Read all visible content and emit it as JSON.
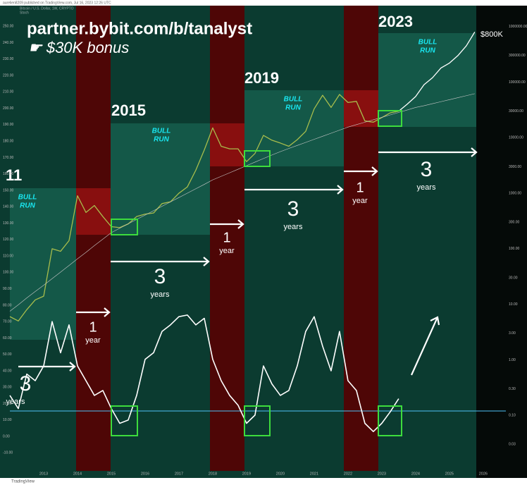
{
  "chart_data": {
    "type": "line",
    "title": "Bitcoin / U.S. Dollar, 1W, CRYPTO",
    "publisher": "aurelien8209 published on TradingView.com, Jul 16, 2023 12:26 UTC",
    "indicator": "Stoch",
    "footer": "TradingView",
    "x": [
      2012,
      2012.25,
      2012.5,
      2012.75,
      2013,
      2013.25,
      2013.5,
      2013.75,
      2014,
      2014.25,
      2014.5,
      2014.75,
      2015,
      2015.25,
      2015.5,
      2015.75,
      2016,
      2016.25,
      2016.5,
      2016.75,
      2017,
      2017.25,
      2017.5,
      2017.75,
      2018,
      2018.25,
      2018.5,
      2018.75,
      2019,
      2019.25,
      2019.5,
      2019.75,
      2020,
      2020.25,
      2020.5,
      2020.75,
      2021,
      2021.25,
      2021.5,
      2021.75,
      2022,
      2022.25,
      2022.5,
      2022.75,
      2023,
      2023.25,
      2023.5,
      2023.75,
      2024,
      2024.25,
      2024.5,
      2024.75,
      2025,
      2025.25,
      2025.5,
      2025.75
    ],
    "series": [
      {
        "color": "#a8bd4c",
        "axis": "y2",
        "values": [
          6,
          5,
          8,
          12,
          14,
          100,
          90,
          140,
          900,
          450,
          600,
          380,
          250,
          240,
          280,
          380,
          420,
          440,
          650,
          700,
          1000,
          1300,
          2600,
          6000,
          15000,
          7000,
          6300,
          6300,
          3700,
          5200,
          11000,
          9000,
          8000,
          7000,
          9200,
          13000,
          33000,
          58000,
          35000,
          60000,
          43000,
          45000,
          20000,
          19000,
          23000,
          28000,
          30000,
          null,
          null,
          null,
          null,
          null,
          null,
          null,
          null,
          null
        ]
      },
      {
        "color": "#ffffff",
        "axis": "y2",
        "values": [
          null,
          null,
          null,
          null,
          null,
          null,
          null,
          null,
          null,
          null,
          null,
          null,
          null,
          null,
          null,
          null,
          null,
          null,
          null,
          null,
          null,
          null,
          null,
          null,
          null,
          null,
          null,
          null,
          null,
          null,
          null,
          null,
          null,
          null,
          null,
          null,
          null,
          null,
          null,
          null,
          null,
          null,
          null,
          null,
          null,
          null,
          30000,
          40000,
          55000,
          90000,
          120000,
          180000,
          220000,
          300000,
          450000,
          800000
        ]
      },
      {
        "color": "#c8c8c8",
        "axis": "y2",
        "values": [
          7.5,
          9.8,
          13,
          17,
          22,
          29,
          38,
          50,
          66,
          86,
          114,
          149,
          195,
          234,
          281,
          337,
          404,
          484,
          581,
          697,
          836,
          1002,
          1202,
          1442,
          1740,
          2014,
          2333,
          2704,
          3133,
          3631,
          4207,
          4875,
          5600,
          6383,
          7244,
          8222,
          9333,
          10593,
          12023,
          13646,
          15500,
          17140,
          18967,
          20989,
          23227,
          25704,
          28445,
          31477,
          35000,
          37670,
          40926,
          44463,
          48306,
          52481,
          57016,
          61944
        ]
      },
      {
        "color": "#ffffff",
        "axis": "y",
        "values": [
          25,
          17,
          38,
          34,
          43,
          70,
          51,
          68,
          43,
          34,
          25,
          28,
          17,
          8,
          10,
          25,
          47,
          51,
          64,
          68,
          73,
          74,
          68,
          72,
          47,
          34,
          25,
          19,
          8,
          13,
          43,
          32,
          25,
          28,
          43,
          64,
          73,
          55,
          40,
          64,
          34,
          28,
          8,
          3,
          8,
          15,
          23,
          null,
          null,
          null,
          null,
          null,
          null,
          null,
          null,
          null
        ]
      }
    ],
    "xlim": [
      2012,
      2026.67
    ],
    "xticks": [
      2013,
      2014,
      2015,
      2016,
      2017,
      2018,
      2019,
      2020,
      2021,
      2022,
      2023,
      2024,
      2025,
      2026
    ],
    "ylim": [
      -21,
      260
    ],
    "yticks": [
      {
        "value": 250,
        "label": "250.00"
      },
      {
        "value": 240,
        "label": "240.00"
      },
      {
        "value": 230,
        "label": "230.00"
      },
      {
        "value": 220,
        "label": "220.00"
      },
      {
        "value": 210,
        "label": "210.00"
      },
      {
        "value": 200,
        "label": "200.00"
      },
      {
        "value": 190,
        "label": "190.00"
      },
      {
        "value": 180,
        "label": "180.00"
      },
      {
        "value": 170,
        "label": "170.00"
      },
      {
        "value": 160,
        "label": "160.00"
      },
      {
        "value": 150,
        "label": "150.00"
      },
      {
        "value": 140,
        "label": "140.00"
      },
      {
        "value": 130,
        "label": "130.00"
      },
      {
        "value": 120,
        "label": "120.00"
      },
      {
        "value": 110,
        "label": "110.00"
      },
      {
        "value": 100,
        "label": "100.00"
      },
      {
        "value": 90,
        "label": "90.00"
      },
      {
        "value": 80,
        "label": "80.00"
      },
      {
        "value": 70,
        "label": "70.00"
      },
      {
        "value": 60,
        "label": "60.00"
      },
      {
        "value": 50,
        "label": "50.00"
      },
      {
        "value": 40,
        "label": "40.00"
      },
      {
        "value": 30,
        "label": "30.00"
      },
      {
        "value": 20,
        "label": "20.00"
      },
      {
        "value": 10,
        "label": "10.00"
      },
      {
        "value": 0,
        "label": "0.00"
      },
      {
        "value": -10,
        "label": "-10.00"
      }
    ],
    "y2lim": [
      0.01,
      2000000
    ],
    "y2scale": "log",
    "y2ticks": [
      {
        "value": 1000000,
        "label": "1000000.00"
      },
      {
        "value": 300000,
        "label": "300000.00"
      },
      {
        "value": 100000,
        "label": "100000.00"
      },
      {
        "value": 30000,
        "label": "30000.00"
      },
      {
        "value": 10000,
        "label": "10000.00"
      },
      {
        "value": 3000,
        "label": "3000.00"
      },
      {
        "value": 1000,
        "label": "1000.00"
      },
      {
        "value": 300,
        "label": "300.00"
      },
      {
        "value": 100,
        "label": "100.00"
      },
      {
        "value": 30,
        "label": "30.00"
      },
      {
        "value": 10,
        "label": "10.00"
      },
      {
        "value": 3,
        "label": "3.00"
      },
      {
        "value": 1,
        "label": "1.00"
      },
      {
        "value": 0.3,
        "label": "0.30"
      },
      {
        "value": 0.1,
        "label": "0.10"
      },
      {
        "value": 0.03,
        "label": "0.03"
      }
    ],
    "reference_line": 15.5,
    "reference_color": "#4fc3f7",
    "grid": false,
    "annotations": [
      "partner.bybit.com/b/tanalyst",
      "☛ $30K bonus",
      "11",
      "2015",
      "2019",
      "2023",
      "BULL",
      "RUN",
      "BULL",
      "RUN",
      "BULL",
      "RUN",
      "BULL",
      "RUN",
      "1",
      "year",
      "1",
      "year",
      "1",
      "year",
      "3",
      "years",
      "3",
      "years",
      "3",
      "years",
      "3",
      "years",
      "$800K"
    ]
  }
}
